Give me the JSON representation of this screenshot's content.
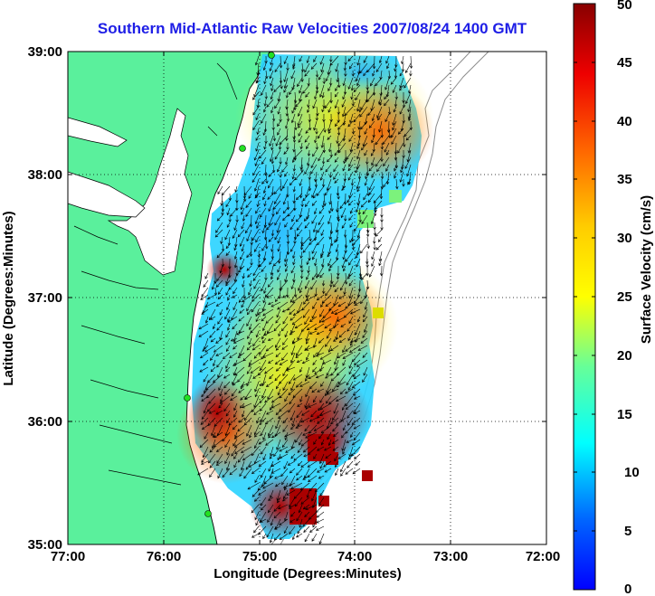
{
  "title": "Southern Mid-Atlantic Raw Velocities 2007/08/24 1400 GMT",
  "map": {
    "xlabel": "Longitude (Degrees:Minutes)",
    "ylabel": "Latitude (Degrees:Minutes)",
    "x_ticks": [
      "77:00",
      "76:00",
      "75:00",
      "74:00",
      "73:00",
      "72:00"
    ],
    "y_ticks": [
      "39:00",
      "38:00",
      "37:00",
      "36:00",
      "35:00"
    ],
    "land_color": "#5af09c",
    "grid": "dotted"
  },
  "colorbar": {
    "label": "Surface Velocity (cm/s)",
    "ticks": [
      "50",
      "45",
      "40",
      "35",
      "30",
      "25",
      "20",
      "15",
      "10",
      "5",
      "0"
    ],
    "range": [
      0,
      50
    ],
    "colormap": "jet"
  },
  "stations": [
    "station",
    "station",
    "station",
    "station"
  ]
}
